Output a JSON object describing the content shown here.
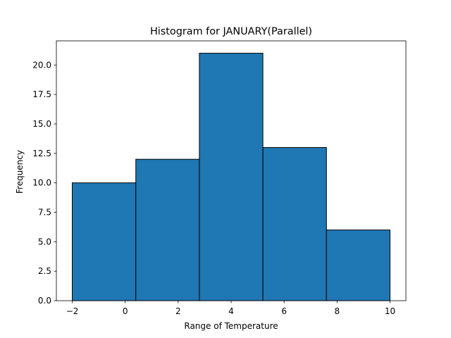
{
  "chart_data": {
    "type": "bar",
    "title": "Histogram for JANUARY(Parallel)",
    "xlabel": "Range of Temperature",
    "ylabel": "Frequency",
    "bins": [
      {
        "x0": -2.0,
        "x1": 0.4,
        "count": 10
      },
      {
        "x0": 0.4,
        "x1": 2.8,
        "count": 12
      },
      {
        "x0": 2.8,
        "x1": 5.2,
        "count": 21
      },
      {
        "x0": 5.2,
        "x1": 7.6,
        "count": 13
      },
      {
        "x0": 7.6,
        "x1": 10.0,
        "count": 6
      }
    ],
    "xlim": [
      -2.6,
      10.6
    ],
    "ylim": [
      0,
      22.05
    ],
    "xticks": [
      -2,
      0,
      2,
      4,
      6,
      8,
      10
    ],
    "xtick_labels": [
      "−2",
      "0",
      "2",
      "4",
      "6",
      "8",
      "10"
    ],
    "yticks": [
      0,
      2.5,
      5,
      7.5,
      10,
      12.5,
      15,
      17.5,
      20
    ],
    "ytick_labels": [
      "0.0",
      "2.5",
      "5.0",
      "7.5",
      "10.0",
      "12.5",
      "15.0",
      "17.5",
      "20.0"
    ],
    "grid": false,
    "colors": {
      "bar_fill": "#1f77b4",
      "bar_edge": "#000000",
      "axes": "#000000",
      "background": "#ffffff"
    }
  }
}
